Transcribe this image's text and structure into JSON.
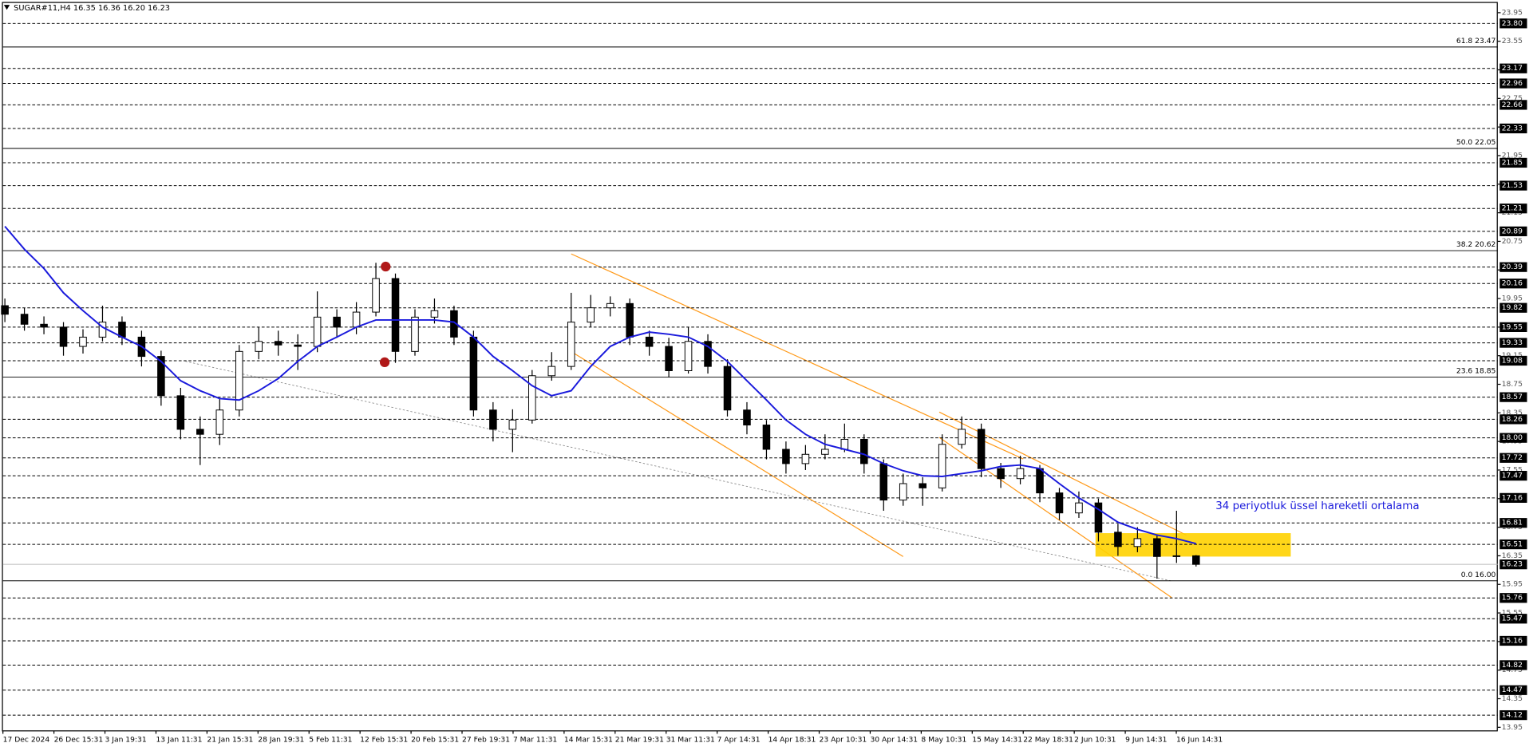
{
  "chart_data": {
    "type": "candlestick",
    "title": "SUGAR#11,H4  16.35 16.36 16.20 16.23",
    "ylim": [
      13.9,
      24.1
    ],
    "yticks": [
      23.95,
      23.55,
      23.15,
      22.75,
      22.35,
      21.95,
      21.55,
      21.15,
      20.75,
      20.35,
      19.95,
      19.55,
      19.15,
      18.75,
      18.35,
      17.95,
      17.55,
      17.15,
      16.75,
      16.35,
      15.95,
      15.55,
      15.15,
      14.75,
      14.35,
      13.95
    ],
    "levels": [
      {
        "value": 23.8,
        "label": "23.80"
      },
      23.17,
      22.96,
      22.66,
      22.33,
      21.85,
      21.53,
      21.21,
      20.89,
      20.39,
      20.16,
      19.82,
      19.55,
      19.33,
      19.08,
      18.57,
      18.26,
      {
        "value": 18,
        "label": "18.00"
      },
      17.72,
      17.47,
      17.16,
      16.81,
      16.51,
      15.76,
      15.47,
      15.16,
      14.82,
      14.47,
      14.12
    ],
    "fib_levels": [
      {
        "value": 23.47,
        "label": "61.8 23.47"
      },
      {
        "value": 22.05,
        "label": "50.0 22.05"
      },
      {
        "value": 20.62,
        "label": "38.2 20.62"
      },
      {
        "value": 18.85,
        "label": "23.6 18.85"
      },
      {
        "value": 16,
        "label": "0.0 16.00"
      }
    ],
    "last_price": 16.23,
    "xlabels": [
      "17 Dec 2024",
      "26 Dec 15:31",
      "3 Jan 19:31",
      "13 Jan 11:31",
      "21 Jan 15:31",
      "28 Jan 19:31",
      "5 Feb 11:31",
      "12 Feb 15:31",
      "20 Feb 15:31",
      "27 Feb 19:31",
      "7 Mar 11:31",
      "14 Mar 15:31",
      "21 Mar 19:31",
      "31 Mar 11:31",
      "7 Apr 14:31",
      "14 Apr 18:31",
      "23 Apr 10:31",
      "30 Apr 14:31",
      "8 May 10:31",
      "15 May 14:31",
      "22 May 18:31",
      "2 Jun 10:31",
      "9 Jun 14:31",
      "16 Jun 14:31"
    ],
    "color": "#000000",
    "open": [
      19.85,
      19.73,
      19.59,
      19.55,
      19.28,
      19.41,
      19.62,
      19.41,
      19.14,
      18.59,
      18.12,
      18.05,
      18.39,
      19.21,
      19.35,
      19.3,
      19.28,
      19.69,
      19.55,
      19.76,
      20.23,
      19.21,
      19.69,
      19.78,
      19.41,
      18.39,
      18.12,
      18.25,
      18.87,
      19.0,
      19.62,
      19.82,
      19.88,
      19.41,
      19.28,
      18.94,
      19.35,
      19.0,
      18.39,
      18.18,
      17.84,
      17.64,
      17.77,
      17.84,
      17.98,
      17.64,
      17.13,
      17.36,
      17.3,
      17.91,
      18.12,
      17.57,
      17.43,
      17.57,
      17.23,
      16.95,
      17.09,
      16.68,
      16.48,
      16.59,
      16.34,
      16.35
    ],
    "high": [
      19.95,
      19.82,
      19.7,
      19.62,
      19.52,
      19.85,
      19.7,
      19.5,
      19.22,
      18.7,
      18.3,
      18.55,
      19.3,
      19.55,
      19.5,
      19.45,
      20.05,
      19.8,
      19.9,
      20.45,
      20.3,
      19.8,
      19.95,
      19.85,
      19.5,
      18.5,
      18.4,
      18.95,
      19.2,
      20.03,
      20.0,
      19.98,
      19.95,
      19.5,
      19.4,
      19.55,
      19.45,
      19.1,
      18.5,
      18.25,
      17.95,
      17.9,
      18.05,
      18.2,
      18.05,
      17.7,
      17.5,
      17.45,
      18.05,
      18.3,
      18.2,
      17.65,
      17.75,
      17.62,
      17.3,
      17.25,
      17.15,
      16.8,
      16.75,
      16.65,
      16.98,
      16.36
    ],
    "low": [
      19.62,
      19.5,
      19.45,
      19.15,
      19.18,
      19.35,
      19.3,
      19.0,
      18.45,
      17.98,
      17.62,
      17.9,
      18.3,
      19.1,
      19.15,
      18.95,
      19.2,
      19.4,
      19.45,
      19.7,
      19.05,
      19.15,
      19.6,
      19.3,
      18.3,
      17.95,
      17.8,
      18.2,
      18.8,
      18.95,
      19.55,
      19.7,
      19.3,
      19.15,
      18.85,
      18.9,
      18.9,
      18.3,
      18.05,
      17.7,
      17.5,
      17.55,
      17.7,
      17.8,
      17.5,
      16.98,
      17.05,
      17.05,
      17.25,
      17.85,
      17.45,
      17.3,
      17.35,
      17.1,
      16.85,
      16.88,
      16.55,
      16.35,
      16.4,
      16.03,
      16.25,
      16.2
    ],
    "close": [
      19.73,
      19.59,
      19.55,
      19.28,
      19.41,
      19.62,
      19.41,
      19.14,
      18.59,
      18.12,
      18.05,
      18.39,
      19.21,
      19.35,
      19.3,
      19.28,
      19.69,
      19.55,
      19.76,
      20.23,
      19.21,
      19.69,
      19.78,
      19.41,
      18.39,
      18.12,
      18.25,
      18.87,
      19.0,
      19.62,
      19.82,
      19.88,
      19.41,
      19.28,
      18.94,
      19.35,
      19.0,
      18.39,
      18.18,
      17.84,
      17.64,
      17.77,
      17.84,
      17.98,
      17.64,
      17.13,
      17.36,
      17.3,
      17.91,
      18.12,
      17.57,
      17.43,
      17.57,
      17.23,
      16.95,
      17.09,
      16.68,
      16.48,
      16.59,
      16.34,
      16.35,
      16.23
    ],
    "ma": {
      "color": "#1a1adc",
      "values": [
        20.96,
        20.64,
        20.37,
        20.03,
        19.78,
        19.55,
        19.41,
        19.28,
        19.07,
        18.8,
        18.66,
        18.55,
        18.53,
        18.66,
        18.83,
        19.07,
        19.28,
        19.41,
        19.55,
        19.65,
        19.65,
        19.65,
        19.65,
        19.62,
        19.41,
        19.14,
        18.94,
        18.73,
        18.59,
        18.66,
        19.0,
        19.28,
        19.41,
        19.48,
        19.45,
        19.41,
        19.28,
        19.07,
        18.8,
        18.53,
        18.25,
        18.05,
        17.91,
        17.84,
        17.77,
        17.64,
        17.54,
        17.47,
        17.46,
        17.5,
        17.54,
        17.6,
        17.62,
        17.57,
        17.36,
        17.16,
        17.0,
        16.82,
        16.72,
        16.64,
        16.59,
        16.52
      ]
    },
    "annotation": "34 periyotluk üssel hareketli ortalama"
  }
}
